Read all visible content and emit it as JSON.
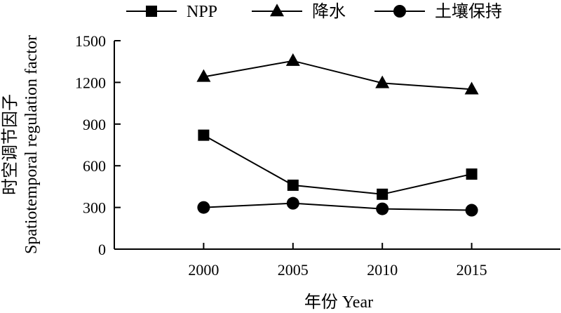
{
  "chart_data": {
    "type": "line",
    "title": "",
    "xlabel": "年份 Year",
    "ylabel_lines": [
      "时空调节因子",
      "Spatiotemporal regulation factor"
    ],
    "x": [
      2000,
      2005,
      2010,
      2015
    ],
    "xlim": [
      1995,
      2020
    ],
    "ylim": [
      0,
      1500
    ],
    "yticks": [
      0,
      300,
      600,
      900,
      1200,
      1500
    ],
    "grid": false,
    "legend_position": "top",
    "series": [
      {
        "name": "NPP",
        "marker": "square",
        "values": [
          820,
          460,
          395,
          540
        ]
      },
      {
        "name": "降水",
        "marker": "triangle",
        "values": [
          1240,
          1355,
          1195,
          1150
        ]
      },
      {
        "name": "土壤保持",
        "marker": "circle",
        "values": [
          300,
          330,
          290,
          280
        ]
      }
    ],
    "colors": {
      "line": "#000000",
      "marker": "#000000",
      "background": "#ffffff"
    }
  }
}
